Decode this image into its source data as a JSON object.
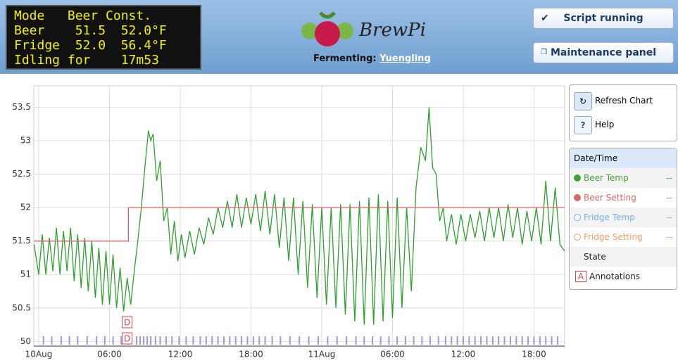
{
  "header": {
    "lcd": [
      "Mode   Beer Const.",
      "Beer    51.5  52.0°F",
      "Fridge  52.0  56.4°F",
      "Idling for    17m53"
    ],
    "logo_text": "BrewPi",
    "fermenting_label": "Fermenting:",
    "beer_name": "Yuengling",
    "buttons": [
      "Script running",
      "Maintenance panel"
    ]
  },
  "side_buttons": [
    "Refresh Chart",
    "Help"
  ],
  "legend": {
    "title": "Date/Time",
    "items": [
      {
        "name": "Beer Temp",
        "value": "--",
        "color": "#41a335",
        "filled": true
      },
      {
        "name": "Beer Setting",
        "value": "--",
        "color": "#e06666",
        "filled": true
      },
      {
        "name": "Fridge Temp",
        "value": "--",
        "color": "#6fb1e0",
        "filled": false
      },
      {
        "name": "Fridge Setting",
        "value": "--",
        "color": "#f0a060",
        "filled": false
      },
      {
        "name": "State"
      },
      {
        "name": "Annotations",
        "icon": "A"
      }
    ]
  },
  "chart_data": {
    "type": "line",
    "ylim": [
      49.93,
      53.82
    ],
    "yticks": [
      50,
      50.5,
      51,
      51.5,
      52,
      52.5,
      53,
      53.5
    ],
    "xlim": [
      -0.42,
      44.6
    ],
    "xticks": [
      {
        "value": 0,
        "label": "10Aug"
      },
      {
        "value": 6,
        "label": "06:00"
      },
      {
        "value": 12,
        "label": "12:00"
      },
      {
        "value": 18,
        "label": "18:00"
      },
      {
        "value": 24,
        "label": "11Aug"
      },
      {
        "value": 30,
        "label": "06:00"
      },
      {
        "value": 36,
        "label": "12:00"
      },
      {
        "value": 42,
        "label": "18:00"
      }
    ],
    "grid": true,
    "series": [
      {
        "name": "Beer Temp",
        "color": "#2ea02e",
        "x": [
          -0.4,
          0,
          0.3,
          0.6,
          0.9,
          1.2,
          1.5,
          1.8,
          2.1,
          2.4,
          2.7,
          3.0,
          3.3,
          3.6,
          3.9,
          4.2,
          4.5,
          4.8,
          5.1,
          5.4,
          5.7,
          6.0,
          6.3,
          6.6,
          6.9,
          7.2,
          7.5,
          7.8,
          8.1,
          8.4,
          8.7,
          9.0,
          9.3,
          9.5,
          9.7,
          10.0,
          10.3,
          10.6,
          10.9,
          11.2,
          11.5,
          11.8,
          12.1,
          12.4,
          12.8,
          13.2,
          13.6,
          14.0,
          14.4,
          14.8,
          15.2,
          15.6,
          16.0,
          16.4,
          16.8,
          17.2,
          17.6,
          18.0,
          18.4,
          18.8,
          19.2,
          19.6,
          20.0,
          20.4,
          20.8,
          21.2,
          21.6,
          22.0,
          22.4,
          22.8,
          23.2,
          23.6,
          24.0,
          24.4,
          24.8,
          25.2,
          25.6,
          26.0,
          26.4,
          26.8,
          27.2,
          27.6,
          28.0,
          28.4,
          28.8,
          29.2,
          29.6,
          30.0,
          30.4,
          30.8,
          31.2,
          31.6,
          32.0,
          32.4,
          32.8,
          33.1,
          33.4,
          33.7,
          34.0,
          34.3,
          34.6,
          35.0,
          35.4,
          35.8,
          36.2,
          36.6,
          37.0,
          37.4,
          37.8,
          38.2,
          38.6,
          39.0,
          39.4,
          39.8,
          40.2,
          40.6,
          41.0,
          41.4,
          41.8,
          42.2,
          42.6,
          43.0,
          43.4,
          43.8,
          44.2,
          44.6
        ],
        "values": [
          51.45,
          51.0,
          51.6,
          51.0,
          51.55,
          51.05,
          51.7,
          51.0,
          51.65,
          51.05,
          51.7,
          50.9,
          51.6,
          50.8,
          51.55,
          50.75,
          51.5,
          50.65,
          51.4,
          50.55,
          51.35,
          50.55,
          51.3,
          50.5,
          51.1,
          50.45,
          50.95,
          50.55,
          51.05,
          51.5,
          52.0,
          52.6,
          53.15,
          53.0,
          53.1,
          52.4,
          52.7,
          51.8,
          52.0,
          51.3,
          51.8,
          51.2,
          51.6,
          51.25,
          51.65,
          51.3,
          51.7,
          51.45,
          51.85,
          51.6,
          52.0,
          51.7,
          52.1,
          51.7,
          52.2,
          51.7,
          52.15,
          51.75,
          52.2,
          51.65,
          52.25,
          51.6,
          52.2,
          51.4,
          52.15,
          51.2,
          52.15,
          51.0,
          52.1,
          50.8,
          52.05,
          50.65,
          52.0,
          50.55,
          52.0,
          50.5,
          52.05,
          50.4,
          52.05,
          50.3,
          52.1,
          50.25,
          52.15,
          50.25,
          52.2,
          50.3,
          52.1,
          50.35,
          52.15,
          50.5,
          52.0,
          50.75,
          52.3,
          52.9,
          52.7,
          53.5,
          52.6,
          52.5,
          51.8,
          52.0,
          51.5,
          51.9,
          51.45,
          51.9,
          51.5,
          51.9,
          51.55,
          51.95,
          51.5,
          52.0,
          51.55,
          52.0,
          51.5,
          52.05,
          51.55,
          52.0,
          51.45,
          51.95,
          51.5,
          52.0,
          51.45,
          52.4,
          51.5,
          52.3,
          51.45,
          51.35
        ]
      },
      {
        "name": "Beer Setting",
        "color": "#e06060",
        "x": [
          -0.42,
          7.6,
          7.6,
          44.6
        ],
        "values": [
          51.5,
          51.5,
          52,
          52
        ]
      }
    ],
    "state_x": [
      0.4,
      1.1,
      1.9,
      2.6,
      3.3,
      4.1,
      4.9,
      5.6,
      6.3,
      7.0,
      7.6,
      8.3,
      8.6,
      8.9,
      9.2,
      9.5,
      9.9,
      10.3,
      10.8,
      11.3,
      11.9,
      12.5,
      13.1,
      13.7,
      14.2,
      14.7,
      15.2,
      15.7,
      16.2,
      16.7,
      17.2,
      17.7,
      18.2,
      18.7,
      19.2,
      19.8,
      20.5,
      21.3,
      22.1,
      22.9,
      23.7,
      24.5,
      25.3,
      26.1,
      26.9,
      27.6,
      28.3,
      29.0,
      29.7,
      30.4,
      31.1,
      31.8,
      32.5,
      33.2,
      33.9,
      34.5,
      35.0,
      35.5,
      36.0,
      36.5,
      37.0,
      37.5,
      38.0,
      38.5,
      39.0,
      39.5,
      40.0,
      40.5,
      41.0,
      41.5,
      42.0,
      42.5,
      43.0,
      43.5,
      44.0
    ],
    "annotations": [
      {
        "x": 7.5,
        "label": "D"
      },
      {
        "x": 7.5,
        "label": "D"
      }
    ]
  }
}
